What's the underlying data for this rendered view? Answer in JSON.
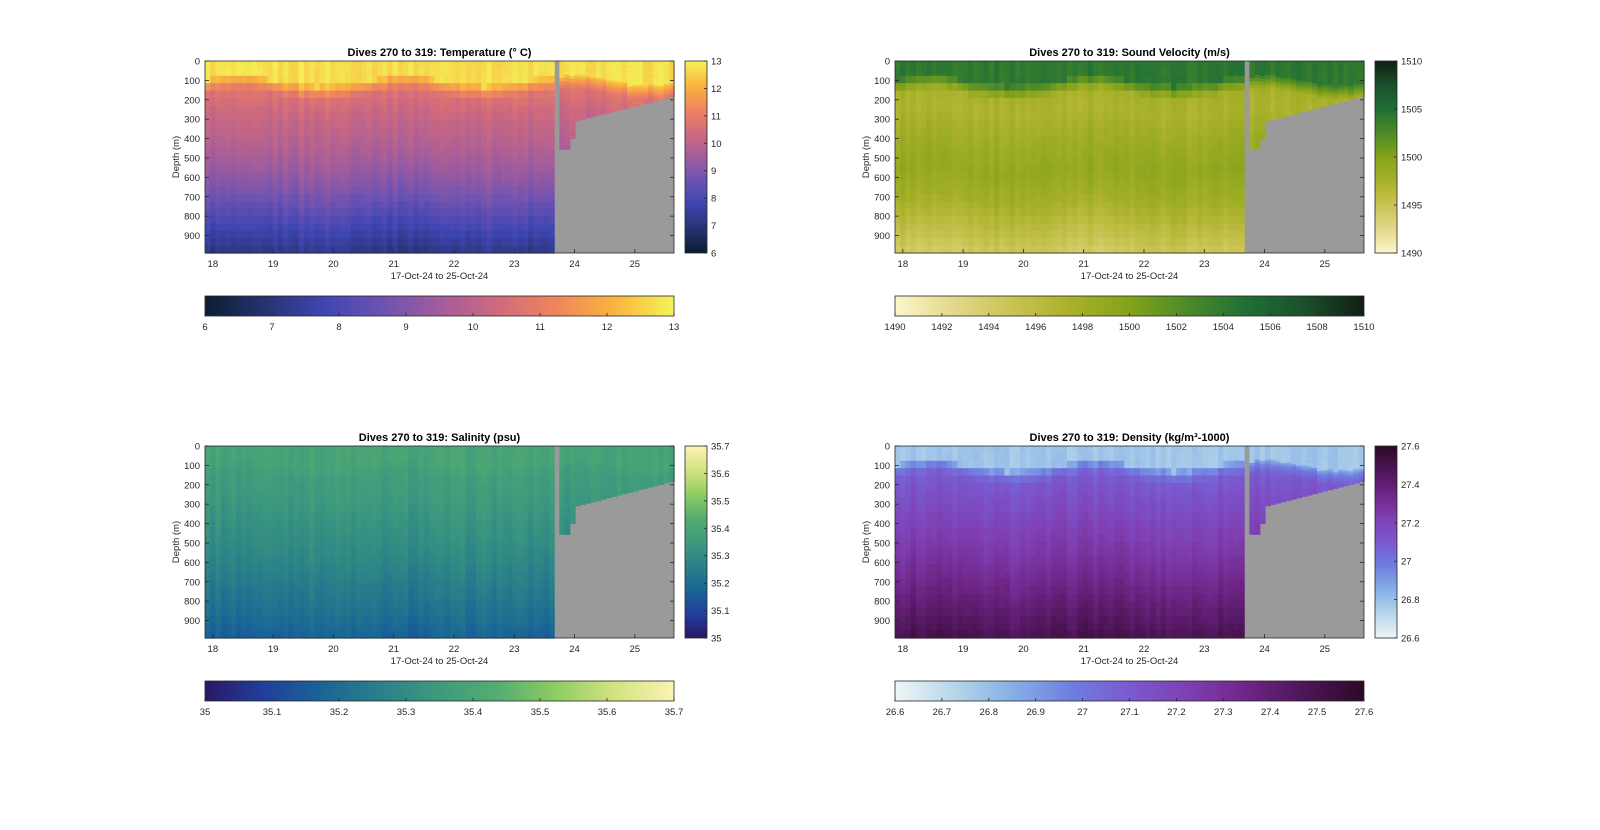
{
  "chart_data": [
    {
      "type": "heatmap",
      "id": "temperature",
      "title": "Dives 270 to 319: Temperature (° C)",
      "xlabel": "17-Oct-24 to 25-Oct-24",
      "ylabel": "Depth (m)",
      "x_ticks": [
        "18",
        "19",
        "20",
        "21",
        "22",
        "23",
        "24",
        "25"
      ],
      "y_ticks": [
        "0",
        "100",
        "200",
        "300",
        "400",
        "500",
        "600",
        "700",
        "800",
        "900"
      ],
      "xlim": [
        17.87,
        25.65
      ],
      "ylim": [
        0,
        990
      ],
      "colorbar": {
        "min": 6,
        "max": 13,
        "ticks": [
          "6",
          "7",
          "8",
          "9",
          "10",
          "11",
          "12",
          "13"
        ]
      },
      "hcolorbar": {
        "min": 6,
        "max": 13,
        "ticks": [
          "6",
          "7",
          "8",
          "9",
          "10",
          "11",
          "12",
          "13"
        ]
      },
      "colormap": [
        "#0b1d33",
        "#25336f",
        "#3e45b1",
        "#6b52b3",
        "#a25c9c",
        "#d06a7d",
        "#f0855c",
        "#f9b53e",
        "#f4f458"
      ],
      "profile_depths": [
        0,
        80,
        120,
        160,
        250,
        400,
        550,
        700,
        850,
        990
      ],
      "profile_values": [
        12.8,
        12.6,
        11.6,
        10.7,
        10.3,
        9.9,
        9.4,
        8.7,
        7.8,
        7.1
      ],
      "surface_layer_value": 12.7
    },
    {
      "type": "heatmap",
      "id": "sound-velocity",
      "title": "Dives 270 to 319: Sound Velocity (m/s)",
      "xlabel": "17-Oct-24 to 25-Oct-24",
      "ylabel": "Depth (m)",
      "x_ticks": [
        "18",
        "19",
        "20",
        "21",
        "22",
        "23",
        "24",
        "25"
      ],
      "y_ticks": [
        "0",
        "100",
        "200",
        "300",
        "400",
        "500",
        "600",
        "700",
        "800",
        "900"
      ],
      "xlim": [
        17.87,
        25.65
      ],
      "ylim": [
        0,
        990
      ],
      "colorbar": {
        "min": 1490,
        "max": 1510,
        "ticks": [
          "1490",
          "1495",
          "1500",
          "1505",
          "1510"
        ]
      },
      "hcolorbar": {
        "min": 1490,
        "max": 1510,
        "ticks": [
          "1490",
          "1492",
          "1494",
          "1496",
          "1498",
          "1500",
          "1502",
          "1504",
          "1506",
          "1508",
          "1510"
        ]
      },
      "colormap": [
        "#fcf6cc",
        "#e3d88a",
        "#c9c352",
        "#a9b12a",
        "#84a21a",
        "#4c8a28",
        "#1f6f35",
        "#1b4f2b",
        "#121e14"
      ],
      "profile_depths": [
        0,
        80,
        120,
        160,
        250,
        400,
        550,
        700,
        850,
        990
      ],
      "profile_values": [
        1504.4,
        1504.0,
        1501.0,
        1497.6,
        1497.2,
        1498.3,
        1499.0,
        1498.0,
        1496.0,
        1494.2
      ],
      "surface_layer_value": 1504.2
    },
    {
      "type": "heatmap",
      "id": "salinity",
      "title": "Dives 270 to 319: Salinity (psu)",
      "xlabel": "17-Oct-24 to 25-Oct-24",
      "ylabel": "Depth (m)",
      "x_ticks": [
        "18",
        "19",
        "20",
        "21",
        "22",
        "23",
        "24",
        "25"
      ],
      "y_ticks": [
        "0",
        "100",
        "200",
        "300",
        "400",
        "500",
        "600",
        "700",
        "800",
        "900"
      ],
      "xlim": [
        17.87,
        25.65
      ],
      "ylim": [
        0,
        990
      ],
      "colorbar": {
        "min": 35,
        "max": 35.7,
        "ticks": [
          "35",
          "35.1",
          "35.2",
          "35.3",
          "35.4",
          "35.5",
          "35.6",
          "35.7"
        ]
      },
      "hcolorbar": {
        "min": 35,
        "max": 35.7,
        "ticks": [
          "35",
          "35.1",
          "35.2",
          "35.3",
          "35.4",
          "35.5",
          "35.6",
          "35.7"
        ]
      },
      "colormap": [
        "#2a1863",
        "#223e9c",
        "#1a6596",
        "#2a8089",
        "#3e9a7d",
        "#54ad70",
        "#8fcd62",
        "#d4e382",
        "#fbf3b2"
      ],
      "profile_depths": [
        0,
        80,
        120,
        160,
        250,
        400,
        550,
        700,
        850,
        990
      ],
      "profile_values": [
        35.4,
        35.39,
        35.37,
        35.36,
        35.35,
        35.32,
        35.29,
        35.25,
        35.21,
        35.16
      ],
      "surface_layer_value": 35.39
    },
    {
      "type": "heatmap",
      "id": "density",
      "title": "Dives 270 to 319: Density (kg/m³-1000)",
      "xlabel": "17-Oct-24 to 25-Oct-24",
      "ylabel": "Depth (m)",
      "x_ticks": [
        "18",
        "19",
        "20",
        "21",
        "22",
        "23",
        "24",
        "25"
      ],
      "y_ticks": [
        "0",
        "100",
        "200",
        "300",
        "400",
        "500",
        "600",
        "700",
        "800",
        "900"
      ],
      "xlim": [
        17.87,
        25.65
      ],
      "ylim": [
        0,
        990
      ],
      "colorbar": {
        "min": 26.6,
        "max": 27.6,
        "ticks": [
          "26.6",
          "26.8",
          "27",
          "27.2",
          "27.4",
          "27.6"
        ]
      },
      "hcolorbar": {
        "min": 26.6,
        "max": 27.6,
        "ticks": [
          "26.6",
          "26.7",
          "26.8",
          "26.9",
          "27",
          "27.1",
          "27.2",
          "27.3",
          "27.4",
          "27.5",
          "27.6"
        ]
      },
      "colormap": [
        "#f0f6f8",
        "#b6d7ea",
        "#86b0e6",
        "#6e7ee0",
        "#7a5ad0",
        "#7f3fb2",
        "#6e2586",
        "#4d1557",
        "#2b0a25"
      ],
      "profile_depths": [
        0,
        80,
        120,
        160,
        250,
        400,
        550,
        700,
        850,
        990
      ],
      "profile_values": [
        26.78,
        26.82,
        27.0,
        27.1,
        27.14,
        27.2,
        27.26,
        27.34,
        27.42,
        27.5
      ],
      "surface_layer_value": 26.78
    }
  ]
}
